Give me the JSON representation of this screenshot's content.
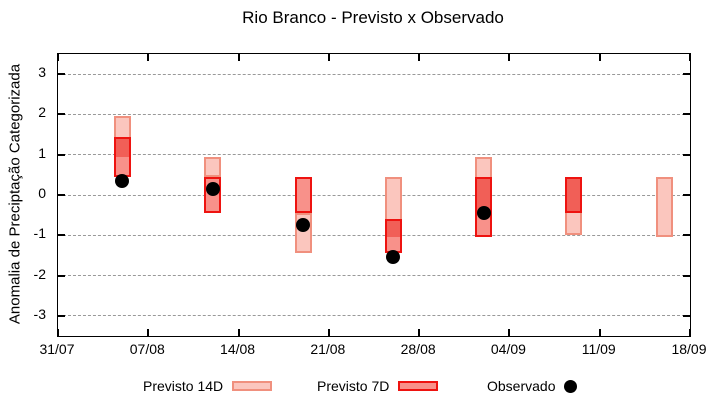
{
  "chart_data": {
    "type": "bar",
    "subtype": "forecast-range-boxes-with-observed-points",
    "title": "Rio Branco - Previsto x Observado",
    "ylabel": "Anomalia de Preciptação Categorizada",
    "ylim": [
      -3.5,
      3.5
    ],
    "yticks": [
      3,
      2,
      1,
      0,
      -1,
      -2,
      -3
    ],
    "grid": true,
    "x_axis": {
      "tick_labels": [
        "31/07",
        "07/08",
        "14/08",
        "21/08",
        "28/08",
        "04/09",
        "11/09",
        "18/09"
      ],
      "span_days": 49,
      "tick_interval_days": 7
    },
    "series": [
      {
        "name": "Previsto 14D",
        "style": "range-box"
      },
      {
        "name": "Previsto 7D",
        "style": "range-box"
      },
      {
        "name": "Observado",
        "style": "point"
      }
    ],
    "bars": [
      {
        "day": 5,
        "previsto_14d": [
          0.95,
          1.95
        ],
        "previsto_7d": [
          0.45,
          1.45
        ],
        "observado": 0.35
      },
      {
        "day": 12,
        "previsto_14d": [
          0.45,
          0.95
        ],
        "previsto_7d": [
          -0.45,
          0.45
        ],
        "observado": 0.15
      },
      {
        "day": 19,
        "previsto_14d": [
          -1.45,
          -0.45
        ],
        "previsto_7d": [
          -0.45,
          0.45
        ],
        "observado": -0.75
      },
      {
        "day": 26,
        "previsto_14d": [
          -1.05,
          0.45
        ],
        "previsto_7d": [
          -1.45,
          -0.6
        ],
        "observado": -1.55
      },
      {
        "day": 33,
        "previsto_14d": [
          -0.45,
          0.95
        ],
        "previsto_7d": [
          -1.05,
          0.45
        ],
        "observado": -0.45
      },
      {
        "day": 40,
        "previsto_14d": [
          -1.0,
          0.45
        ],
        "previsto_7d": [
          -0.45,
          0.45
        ],
        "observado": null
      },
      {
        "day": 47,
        "previsto_14d": [
          -1.05,
          0.45
        ],
        "previsto_7d": null,
        "observado": null
      }
    ],
    "legend": {
      "position": "bottom",
      "items": [
        {
          "label": "Previsto 14D",
          "swatch": "box-light-pink"
        },
        {
          "label": "Previsto 7D",
          "swatch": "box-red"
        },
        {
          "label": "Observado",
          "swatch": "dot-black"
        }
      ]
    },
    "colors": {
      "previsto_14d_fill": "#fbc6be",
      "previsto_14d_border": "#f0907e",
      "previsto_7d_fill": "#f8918a",
      "overlap_fill": "#f15f57",
      "previsto_7d_border": "#ee1310",
      "observado": "#000000",
      "grid": "#999999",
      "axis": "#000000"
    }
  }
}
